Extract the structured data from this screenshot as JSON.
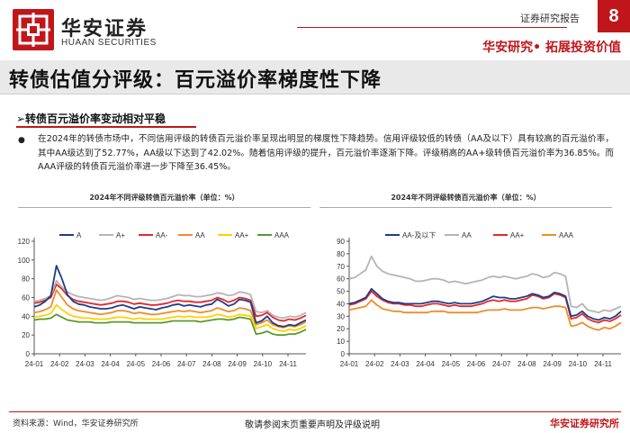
{
  "header": {
    "brand_cn": "华安证券",
    "brand_en": "HUAAN SECURITIES",
    "report_type": "证券研究报告",
    "page_number": "8",
    "slogan": "华安研究• 拓展投资价值"
  },
  "title": "转债估值分评级：百元溢价率梯度性下降",
  "section": {
    "heading": "➢转债百元溢价率变动相对平稳",
    "bullet": "●",
    "paragraph": "在2024年的转债市场中，不同信用评级的转债百元溢价率呈现出明显的梯度性下降趋势。信用评级较低的转债（AA及以下）具有较高的百元溢价率，其中AA级达到了52.77%，AA级以下达到了42.02%。随着信用评级的提升，百元溢价率逐渐下降。评级稍高的AA+级转债百元溢价率为36.85%。而AAA评级的转债百元溢价率进一步下降至36.45%。"
  },
  "colors": {
    "accent": "#c0161b",
    "navy": "#1f3c88",
    "gray": "#b5b5b5",
    "red": "#e8262a",
    "orange": "#f08c2a",
    "yellow": "#ffd000",
    "green": "#5a9a2c"
  },
  "chart_data": [
    {
      "type": "line",
      "title": "2024年不同评级转债百元溢价率（单位：%）",
      "ylim": [
        0,
        120
      ],
      "yticks": [
        0,
        20,
        40,
        60,
        80,
        100,
        120
      ],
      "xticks": [
        "24-01",
        "24-02",
        "24-03",
        "24-04",
        "24-05",
        "24-06",
        "24-07",
        "24-08",
        "24-09",
        "24-10",
        "24-11"
      ],
      "series": [
        {
          "name": "A",
          "color": "#1f3c88",
          "values": [
            50,
            52,
            56,
            62,
            94,
            80,
            63,
            56,
            53,
            52,
            50,
            49,
            48,
            48,
            49,
            51,
            52,
            50,
            48,
            50,
            49,
            48,
            47,
            49,
            50,
            52,
            53,
            51,
            52,
            51,
            50,
            52,
            53,
            58,
            55,
            51,
            53,
            58,
            57,
            55,
            33,
            35,
            40,
            33,
            30,
            29,
            31,
            30,
            33,
            36
          ]
        },
        {
          "name": "A+",
          "color": "#b5b5b5",
          "values": [
            56,
            57,
            59,
            62,
            78,
            71,
            66,
            63,
            61,
            60,
            59,
            58,
            57,
            58,
            60,
            62,
            61,
            60,
            58,
            59,
            58,
            57,
            57,
            58,
            59,
            61,
            63,
            62,
            62,
            61,
            61,
            62,
            63,
            65,
            64,
            62,
            63,
            66,
            65,
            63,
            45,
            44,
            46,
            41,
            39,
            38,
            40,
            39,
            41,
            44
          ]
        },
        {
          "name": "AA-",
          "color": "#e8262a",
          "values": [
            54,
            55,
            57,
            60,
            74,
            69,
            62,
            58,
            56,
            55,
            54,
            53,
            52,
            53,
            54,
            56,
            56,
            55,
            53,
            54,
            53,
            52,
            52,
            53,
            54,
            56,
            57,
            56,
            56,
            55,
            55,
            56,
            57,
            60,
            58,
            55,
            57,
            60,
            59,
            57,
            40,
            41,
            44,
            39,
            36,
            35,
            37,
            36,
            38,
            41
          ]
        },
        {
          "name": "AA",
          "color": "#f08c2a",
          "values": [
            44,
            45,
            47,
            50,
            68,
            60,
            52,
            48,
            46,
            45,
            44,
            43,
            42,
            43,
            44,
            46,
            46,
            45,
            43,
            44,
            43,
            42,
            42,
            43,
            44,
            45,
            46,
            45,
            46,
            45,
            44,
            45,
            46,
            49,
            47,
            45,
            46,
            49,
            48,
            46,
            31,
            33,
            36,
            31,
            29,
            28,
            30,
            29,
            31,
            34
          ]
        },
        {
          "name": "AA+",
          "color": "#ffd000",
          "values": [
            39,
            40,
            41,
            43,
            52,
            47,
            43,
            40,
            39,
            38,
            38,
            37,
            37,
            37,
            38,
            39,
            39,
            38,
            37,
            38,
            37,
            37,
            37,
            37,
            38,
            39,
            40,
            39,
            40,
            39,
            39,
            39,
            40,
            42,
            41,
            39,
            40,
            42,
            41,
            40,
            27,
            29,
            31,
            27,
            25,
            24,
            26,
            25,
            27,
            30
          ]
        },
        {
          "name": "AAA",
          "color": "#5a9a2c",
          "values": [
            36,
            37,
            37,
            38,
            42,
            39,
            36,
            35,
            34,
            34,
            34,
            33,
            33,
            33,
            34,
            34,
            34,
            34,
            33,
            33,
            33,
            33,
            33,
            33,
            34,
            35,
            35,
            35,
            35,
            35,
            34,
            35,
            36,
            37,
            37,
            36,
            37,
            39,
            38,
            37,
            21,
            22,
            24,
            21,
            20,
            20,
            21,
            21,
            23,
            26
          ]
        }
      ]
    },
    {
      "type": "line",
      "title": "2024年不同评级转债百元溢价率（单位：%）",
      "ylim": [
        0,
        90
      ],
      "yticks": [
        0,
        10,
        20,
        30,
        40,
        50,
        60,
        70,
        80,
        90
      ],
      "xticks": [
        "24-01",
        "24-02",
        "24-03",
        "24-04",
        "24-05",
        "24-06",
        "24-07",
        "24-08",
        "24-09",
        "24-10",
        "24-11"
      ],
      "series": [
        {
          "name": "AA-及以下",
          "color": "#1f3c88",
          "values": [
            40,
            41,
            43,
            45,
            52,
            48,
            44,
            42,
            41,
            41,
            40,
            40,
            40,
            40,
            41,
            42,
            42,
            41,
            40,
            41,
            40,
            40,
            40,
            41,
            42,
            44,
            46,
            45,
            45,
            44,
            44,
            45,
            46,
            48,
            47,
            45,
            46,
            49,
            48,
            46,
            30,
            31,
            34,
            30,
            28,
            27,
            29,
            28,
            30,
            34
          ]
        },
        {
          "name": "AA",
          "color": "#b5b5b5",
          "values": [
            60,
            61,
            64,
            67,
            78,
            70,
            66,
            64,
            63,
            62,
            61,
            60,
            58,
            58,
            59,
            60,
            60,
            59,
            57,
            58,
            57,
            56,
            57,
            58,
            59,
            61,
            62,
            61,
            62,
            61,
            60,
            61,
            62,
            64,
            63,
            61,
            62,
            65,
            64,
            62,
            38,
            37,
            40,
            35,
            34,
            33,
            35,
            34,
            36,
            38
          ]
        },
        {
          "name": "AA+",
          "color": "#e8262a",
          "values": [
            39,
            40,
            42,
            44,
            50,
            46,
            43,
            41,
            40,
            40,
            39,
            39,
            38,
            38,
            39,
            40,
            40,
            39,
            38,
            39,
            38,
            38,
            38,
            39,
            40,
            42,
            43,
            42,
            43,
            42,
            42,
            43,
            44,
            47,
            46,
            44,
            45,
            48,
            47,
            45,
            28,
            29,
            32,
            28,
            26,
            25,
            27,
            26,
            28,
            31
          ]
        },
        {
          "name": "AAA",
          "color": "#f08c2a",
          "values": [
            35,
            36,
            37,
            38,
            43,
            39,
            36,
            35,
            34,
            34,
            33,
            33,
            33,
            33,
            33,
            34,
            34,
            34,
            33,
            33,
            33,
            33,
            33,
            33,
            34,
            35,
            35,
            35,
            36,
            35,
            35,
            35,
            36,
            37,
            37,
            36,
            37,
            38,
            38,
            37,
            22,
            23,
            25,
            22,
            20,
            19,
            21,
            20,
            22,
            25
          ]
        }
      ]
    }
  ],
  "footer": {
    "source": "资料来源：Wind，华安证券研究所",
    "disclaimer": "敬请参阅末页重要声明及评级说明",
    "brand": "华安证券研究所"
  }
}
